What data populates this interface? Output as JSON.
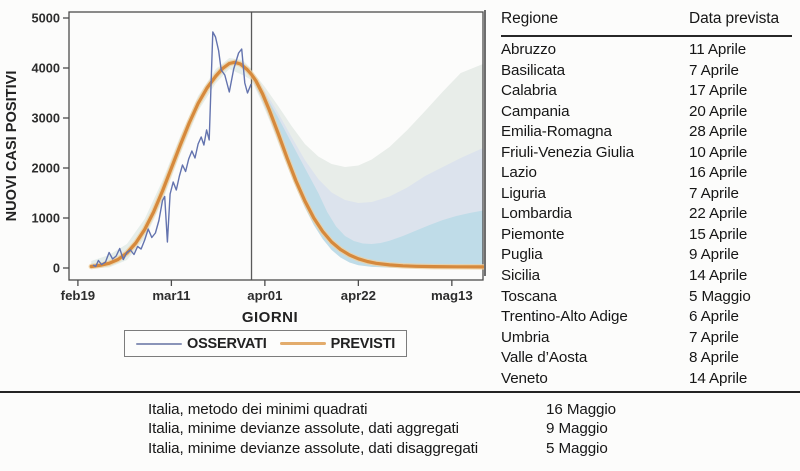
{
  "chart_data": {
    "type": "line",
    "title": "",
    "xlabel": "GIORNI",
    "ylabel": "NUOVI CASI POSITIVI",
    "x_unit": "days (0 = feb19)",
    "xlim": [
      -2,
      91
    ],
    "ylim": [
      -240,
      5120
    ],
    "y_tick_range": [
      0,
      5000
    ],
    "grid": false,
    "legend_position": "bottom",
    "x_ticks": [
      {
        "label": "feb19",
        "day": 0
      },
      {
        "label": "mar11",
        "day": 21
      },
      {
        "label": "apr01",
        "day": 42
      },
      {
        "label": "apr22",
        "day": 63
      },
      {
        "label": "mag13",
        "day": 84
      }
    ],
    "y_ticks": [
      0,
      1000,
      2000,
      3000,
      4000,
      5000
    ],
    "cutoff_day": 39,
    "cutoff_color": "#5a5a5a",
    "axis_color": "#4c4c4c",
    "tick_text_color": "#2d2d2d",
    "bands": [
      {
        "name": "fit-band",
        "color": "#cfe0d9",
        "opacity": 0.5,
        "upper": [
          [
            3,
            140
          ],
          [
            7,
            260
          ],
          [
            11,
            480
          ],
          [
            15,
            980
          ],
          [
            19,
            1750
          ],
          [
            23,
            2640
          ],
          [
            27,
            3440
          ],
          [
            31,
            3980
          ],
          [
            34,
            4200
          ],
          [
            37,
            4160
          ],
          [
            39,
            3980
          ]
        ],
        "lower": [
          [
            3,
            0
          ],
          [
            7,
            10
          ],
          [
            11,
            160
          ],
          [
            15,
            580
          ],
          [
            19,
            1340
          ],
          [
            23,
            2280
          ],
          [
            27,
            3140
          ],
          [
            31,
            3700
          ],
          [
            34,
            3980
          ],
          [
            37,
            3860
          ],
          [
            39,
            3760
          ]
        ]
      },
      {
        "name": "outer-band",
        "color": "#e8ede9",
        "opacity": 1,
        "upper": [
          [
            39,
            3960
          ],
          [
            42,
            3620
          ],
          [
            45,
            3240
          ],
          [
            48,
            2840
          ],
          [
            51,
            2480
          ],
          [
            54,
            2230
          ],
          [
            57,
            2080
          ],
          [
            60,
            2020
          ],
          [
            63,
            2050
          ],
          [
            66,
            2170
          ],
          [
            70,
            2420
          ],
          [
            74,
            2760
          ],
          [
            78,
            3140
          ],
          [
            82,
            3530
          ],
          [
            86,
            3900
          ],
          [
            91,
            4080
          ]
        ],
        "lower": [
          [
            39,
            3750
          ],
          [
            41,
            3380
          ],
          [
            43,
            2960
          ],
          [
            45,
            2500
          ],
          [
            47,
            2040
          ],
          [
            49,
            1600
          ],
          [
            51,
            1200
          ],
          [
            53,
            860
          ],
          [
            55,
            580
          ],
          [
            57,
            370
          ],
          [
            59,
            220
          ],
          [
            61,
            120
          ],
          [
            63,
            60
          ],
          [
            66,
            25
          ],
          [
            70,
            10
          ],
          [
            91,
            5
          ]
        ]
      },
      {
        "name": "middle-band",
        "color": "#dce3ed",
        "opacity": 1,
        "upper": [
          [
            39,
            3930
          ],
          [
            42,
            3540
          ],
          [
            45,
            3100
          ],
          [
            48,
            2620
          ],
          [
            51,
            2160
          ],
          [
            54,
            1780
          ],
          [
            57,
            1510
          ],
          [
            60,
            1360
          ],
          [
            63,
            1300
          ],
          [
            66,
            1320
          ],
          [
            70,
            1430
          ],
          [
            74,
            1610
          ],
          [
            78,
            1840
          ],
          [
            82,
            2020
          ],
          [
            86,
            2200
          ],
          [
            91,
            2400
          ]
        ],
        "lower": [
          [
            39,
            3780
          ],
          [
            41,
            3420
          ],
          [
            43,
            3010
          ],
          [
            45,
            2560
          ],
          [
            47,
            2100
          ],
          [
            49,
            1660
          ],
          [
            51,
            1260
          ],
          [
            53,
            920
          ],
          [
            55,
            640
          ],
          [
            57,
            420
          ],
          [
            59,
            260
          ],
          [
            61,
            150
          ],
          [
            63,
            80
          ],
          [
            66,
            35
          ],
          [
            70,
            12
          ],
          [
            91,
            6
          ]
        ]
      },
      {
        "name": "inner-band",
        "color": "#bfdce8",
        "opacity": 1,
        "upper": [
          [
            39,
            3900
          ],
          [
            42,
            3480
          ],
          [
            45,
            3010
          ],
          [
            48,
            2500
          ],
          [
            51,
            2000
          ],
          [
            54,
            1500
          ],
          [
            56,
            1120
          ],
          [
            58,
            830
          ],
          [
            60,
            640
          ],
          [
            62,
            540
          ],
          [
            64,
            490
          ],
          [
            66,
            480
          ],
          [
            68,
            500
          ],
          [
            70,
            545
          ],
          [
            73,
            640
          ],
          [
            76,
            750
          ],
          [
            79,
            860
          ],
          [
            82,
            960
          ],
          [
            85,
            1040
          ],
          [
            88,
            1100
          ],
          [
            91,
            1150
          ]
        ],
        "lower": [
          [
            39,
            3800
          ],
          [
            41,
            3440
          ],
          [
            43,
            3020
          ],
          [
            45,
            2560
          ],
          [
            47,
            2080
          ],
          [
            49,
            1620
          ],
          [
            51,
            1210
          ],
          [
            53,
            860
          ],
          [
            55,
            580
          ],
          [
            57,
            360
          ],
          [
            59,
            210
          ],
          [
            61,
            110
          ],
          [
            63,
            55
          ],
          [
            66,
            22
          ],
          [
            70,
            8
          ],
          [
            91,
            4
          ]
        ]
      }
    ],
    "series": [
      {
        "name": "OSSERVATI",
        "color": "#6373ae",
        "width": 1.4,
        "points": [
          [
            3.4,
            60
          ],
          [
            4,
            30
          ],
          [
            4.6,
            150
          ],
          [
            5.3,
            70
          ],
          [
            6.2,
            120
          ],
          [
            7,
            310
          ],
          [
            7.8,
            180
          ],
          [
            8.6,
            240
          ],
          [
            9.4,
            390
          ],
          [
            10.2,
            170
          ],
          [
            11,
            310
          ],
          [
            11.8,
            360
          ],
          [
            12.6,
            270
          ],
          [
            13.4,
            430
          ],
          [
            14.2,
            380
          ],
          [
            15,
            560
          ],
          [
            15.8,
            780
          ],
          [
            16.6,
            610
          ],
          [
            17.4,
            700
          ],
          [
            18.2,
            950
          ],
          [
            19,
            1350
          ],
          [
            19.5,
            1430
          ],
          [
            20.1,
            520
          ],
          [
            20.7,
            1480
          ],
          [
            21.4,
            1720
          ],
          [
            22.1,
            1560
          ],
          [
            22.8,
            1840
          ],
          [
            23.5,
            2060
          ],
          [
            24.2,
            1930
          ],
          [
            24.9,
            2180
          ],
          [
            25.6,
            2340
          ],
          [
            26.3,
            2200
          ],
          [
            27,
            2480
          ],
          [
            27.7,
            2620
          ],
          [
            28.3,
            2460
          ],
          [
            28.9,
            2760
          ],
          [
            29.5,
            2560
          ],
          [
            30.3,
            4720
          ],
          [
            30.9,
            4620
          ],
          [
            31.6,
            4350
          ],
          [
            32.2,
            3960
          ],
          [
            33,
            3860
          ],
          [
            34,
            3520
          ],
          [
            35,
            3980
          ],
          [
            36.1,
            4300
          ],
          [
            36.8,
            4380
          ],
          [
            37.5,
            3700
          ],
          [
            38.1,
            3500
          ],
          [
            38.9,
            3680
          ]
        ]
      },
      {
        "name": "PREVISTI",
        "color": "#d6893c",
        "width": 3.2,
        "halo_color": "#eecfa0",
        "halo_width": 5.5,
        "points": [
          [
            3,
            30
          ],
          [
            5,
            55
          ],
          [
            7,
            95
          ],
          [
            9,
            170
          ],
          [
            11,
            300
          ],
          [
            13,
            500
          ],
          [
            15,
            770
          ],
          [
            17,
            1120
          ],
          [
            19,
            1540
          ],
          [
            21,
            2000
          ],
          [
            23,
            2460
          ],
          [
            25,
            2900
          ],
          [
            27,
            3290
          ],
          [
            29,
            3600
          ],
          [
            31,
            3840
          ],
          [
            32.5,
            3990
          ],
          [
            34,
            4090
          ],
          [
            35.2,
            4115
          ],
          [
            36.5,
            4080
          ],
          [
            38,
            3970
          ],
          [
            39,
            3870
          ],
          [
            40,
            3740
          ],
          [
            41.5,
            3480
          ],
          [
            43,
            3160
          ],
          [
            45,
            2690
          ],
          [
            47,
            2200
          ],
          [
            49,
            1740
          ],
          [
            51,
            1340
          ],
          [
            53,
            1000
          ],
          [
            55,
            730
          ],
          [
            57,
            520
          ],
          [
            59,
            370
          ],
          [
            61,
            260
          ],
          [
            63,
            185
          ],
          [
            65,
            130
          ],
          [
            67,
            95
          ],
          [
            70,
            62
          ],
          [
            73,
            45
          ],
          [
            76,
            35
          ],
          [
            80,
            28
          ],
          [
            85,
            24
          ],
          [
            91,
            22
          ]
        ]
      }
    ],
    "legend": [
      {
        "label": "OSSERVATI",
        "color": "#8a94b8",
        "thickness": 2
      },
      {
        "label": "PREVISTI",
        "color": "#e3ac6c",
        "thickness": 3.5
      }
    ]
  },
  "table": {
    "header": {
      "region": "Regione",
      "date": "Data prevista"
    },
    "rows": [
      {
        "region": "Abruzzo",
        "date": "11 Aprile"
      },
      {
        "region": "Basilicata",
        "date": "7 Aprile"
      },
      {
        "region": "Calabria",
        "date": "17 Aprile"
      },
      {
        "region": "Campania",
        "date": "20 Aprile"
      },
      {
        "region": "Emilia-Romagna",
        "date": "28 Aprile"
      },
      {
        "region": "Friuli-Venezia Giulia",
        "date": "10 Aprile"
      },
      {
        "region": "Lazio",
        "date": "16 Aprile"
      },
      {
        "region": "Liguria",
        "date": "7 Aprile"
      },
      {
        "region": "Lombardia",
        "date": "22 Aprile"
      },
      {
        "region": "Piemonte",
        "date": "15 Aprile"
      },
      {
        "region": "Puglia",
        "date": "9 Aprile"
      },
      {
        "region": "Sicilia",
        "date": "14 Aprile"
      },
      {
        "region": "Toscana",
        "date": "5 Maggio"
      },
      {
        "region": "Trentino-Alto Adige",
        "date": "6 Aprile"
      },
      {
        "region": "Umbria",
        "date": "7 Aprile"
      },
      {
        "region": "Valle d’Aosta",
        "date": "8 Aprile"
      },
      {
        "region": "Veneto",
        "date": "14 Aprile"
      }
    ]
  },
  "footer": {
    "rows": [
      {
        "label": "Italia, metodo dei minimi quadrati",
        "date": "16 Maggio"
      },
      {
        "label": "Italia, minime devianze assolute, dati aggregati",
        "date": "9 Maggio"
      },
      {
        "label": "Italia, minime devianze assolute, dati disaggregati",
        "date": "5 Maggio"
      }
    ]
  }
}
